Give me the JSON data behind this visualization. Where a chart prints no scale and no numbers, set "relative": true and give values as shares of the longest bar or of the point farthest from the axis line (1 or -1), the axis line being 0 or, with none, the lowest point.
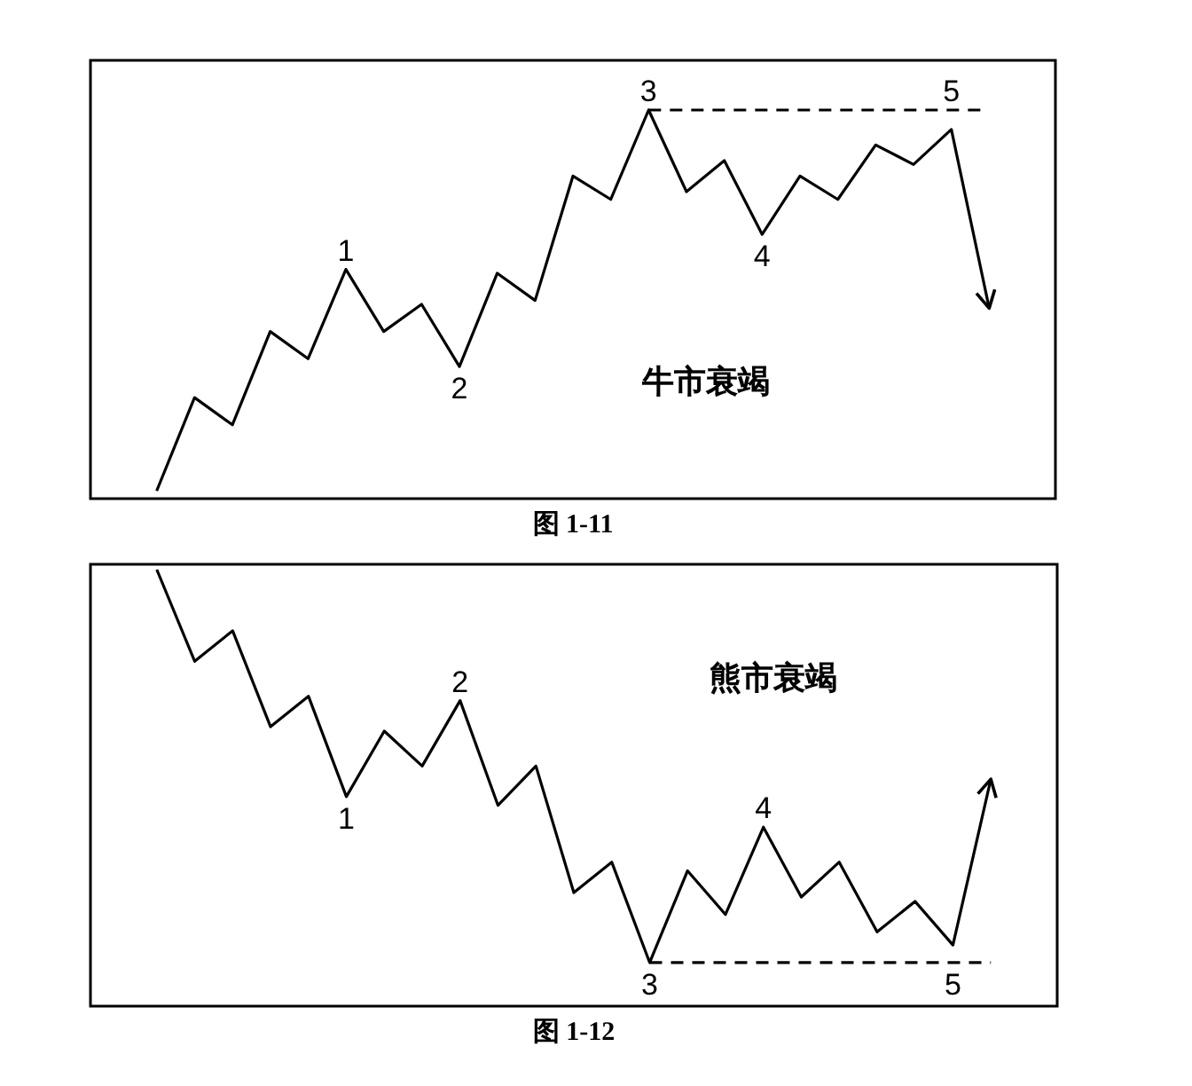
{
  "chart_data": [
    {
      "type": "line",
      "title": "牛市衰竭",
      "relative": true,
      "tick_labels": false,
      "categories": [
        null,
        null,
        null,
        null,
        null,
        null,
        null,
        null,
        null,
        null,
        null,
        null,
        null,
        null,
        null,
        null,
        null,
        null,
        null,
        null,
        null,
        null,
        null
      ],
      "series": [
        {
          "color": "#000000",
          "values": [
            0.02,
            0.26,
            0.19,
            0.43,
            0.36,
            0.59,
            0.43,
            0.5,
            0.34,
            0.58,
            0.51,
            0.83,
            0.77,
            1,
            0.79,
            0.87,
            0.68,
            0.83,
            0.77,
            0.91,
            0.86,
            0.95,
            0.49
          ]
        },
        {
          "type": "line",
          "color": "#000000",
          "line_style": "dashed",
          "values": [
            null,
            null,
            null,
            null,
            null,
            null,
            null,
            null,
            null,
            null,
            null,
            null,
            null,
            1,
            1,
            1,
            1,
            1,
            1,
            1,
            1,
            1,
            1
          ]
        }
      ],
      "annotations": [
        "图 1-11",
        {
          "text": "1",
          "y": 0.59
        },
        {
          "text": "2",
          "y": 0.34
        },
        {
          "text": "3",
          "y": 1
        },
        {
          "text": "4",
          "y": 0.68
        },
        {
          "text": "5",
          "y": 0.95
        }
      ]
    },
    {
      "type": "line",
      "title": "熊市衰竭",
      "relative": true,
      "tick_labels": false,
      "categories": [
        null,
        null,
        null,
        null,
        null,
        null,
        null,
        null,
        null,
        null,
        null,
        null,
        null,
        null,
        null,
        null,
        null,
        null,
        null,
        null,
        null,
        null,
        null
      ],
      "series": [
        {
          "color": "#000000",
          "values": [
            1,
            0.79,
            0.86,
            0.64,
            0.71,
            0.48,
            0.63,
            0.55,
            0.7,
            0.46,
            0.55,
            0.26,
            0.33,
            0.1,
            0.31,
            0.21,
            0.41,
            0.25,
            0.33,
            0.17,
            0.24,
            0.14,
            0.52
          ]
        },
        {
          "type": "line",
          "color": "#000000",
          "line_style": "dashed",
          "values": [
            null,
            null,
            null,
            null,
            null,
            null,
            null,
            null,
            null,
            null,
            null,
            null,
            null,
            0.1,
            0.1,
            0.1,
            0.1,
            0.1,
            0.1,
            0.1,
            0.1,
            0.1,
            0.1
          ]
        }
      ],
      "annotations": [
        "图 1-12",
        {
          "text": "1",
          "y": 0.48
        },
        {
          "text": "2",
          "y": 0.7
        },
        {
          "text": "3",
          "y": 0.1
        },
        {
          "text": "4",
          "y": 0.41
        },
        {
          "text": "5",
          "y": 0.14
        }
      ]
    }
  ]
}
